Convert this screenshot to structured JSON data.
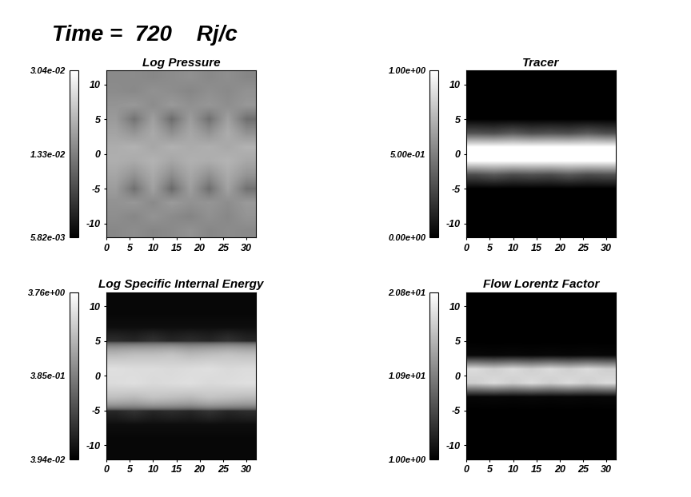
{
  "title": "Time =  720    Rj/c",
  "chart_data": [
    {
      "type": "heatmap",
      "title": "Log Pressure",
      "log": true,
      "xlim": [
        0,
        32
      ],
      "ylim": [
        -12,
        12
      ],
      "xticks": [
        0,
        5,
        10,
        15,
        20,
        25,
        30
      ],
      "yticks": [
        -10,
        -5,
        0,
        5,
        10
      ],
      "colorbar_lim": [
        0.00582,
        0.0304
      ],
      "colorbar_ticks": [
        {
          "value": 0.00582,
          "label": "5.82e-03"
        },
        {
          "value": 0.0133,
          "label": "1.33e-02"
        },
        {
          "value": 0.0304,
          "label": "3.04e-02"
        }
      ],
      "cells": [
        [
          0.014,
          0.0145,
          0.0138,
          0.0142,
          0.015,
          0.0139,
          0.0144,
          0.0141
        ],
        [
          0.0146,
          0.0139,
          0.0151,
          0.0143,
          0.0137,
          0.0148,
          0.014,
          0.0152
        ],
        [
          0.015,
          0.0155,
          0.0142,
          0.0158,
          0.0149,
          0.0153,
          0.0145,
          0.0157
        ],
        [
          0.016,
          0.012,
          0.0165,
          0.0115,
          0.0162,
          0.0118,
          0.0166,
          0.0121
        ],
        [
          0.017,
          0.015,
          0.0175,
          0.0145,
          0.0172,
          0.0148,
          0.0176,
          0.0152
        ],
        [
          0.018,
          0.0175,
          0.0185,
          0.017,
          0.0182,
          0.0178,
          0.0186,
          0.0172
        ],
        [
          0.0178,
          0.0184,
          0.0171,
          0.0183,
          0.0176,
          0.0181,
          0.0173,
          0.0185
        ],
        [
          0.0168,
          0.0152,
          0.0174,
          0.0147,
          0.0171,
          0.015,
          0.0177,
          0.0149
        ],
        [
          0.0158,
          0.0122,
          0.0163,
          0.0117,
          0.016,
          0.012,
          0.0164,
          0.0119
        ],
        [
          0.0152,
          0.0156,
          0.0144,
          0.0157,
          0.0148,
          0.0154,
          0.0146,
          0.0155
        ],
        [
          0.0144,
          0.0141,
          0.0149,
          0.0145,
          0.0139,
          0.0147,
          0.0142,
          0.015
        ],
        [
          0.0142,
          0.0143,
          0.014,
          0.0144,
          0.0148,
          0.0141,
          0.0146,
          0.0139
        ]
      ]
    },
    {
      "type": "heatmap",
      "title": "Tracer",
      "log": false,
      "xlim": [
        0,
        32
      ],
      "ylim": [
        -12,
        12
      ],
      "xticks": [
        0,
        5,
        10,
        15,
        20,
        25,
        30
      ],
      "yticks": [
        -10,
        -5,
        0,
        5,
        10
      ],
      "colorbar_lim": [
        0,
        1
      ],
      "colorbar_ticks": [
        {
          "value": 0,
          "label": "0.00e+00"
        },
        {
          "value": 0.5,
          "label": "5.00e-01"
        },
        {
          "value": 1,
          "label": "1.00e+00"
        }
      ],
      "cells": [
        [
          0,
          0,
          0,
          0,
          0,
          0,
          0,
          0
        ],
        [
          0,
          0,
          0,
          0,
          0,
          0,
          0,
          0
        ],
        [
          0,
          0,
          0,
          0,
          0,
          0,
          0,
          0
        ],
        [
          0,
          0,
          0,
          0,
          0,
          0,
          0,
          0
        ],
        [
          0.3,
          0.35,
          0.3,
          0.32,
          0.3,
          0.35,
          0.3,
          0.32
        ],
        [
          1,
          1,
          1,
          1,
          1,
          1,
          1,
          1
        ],
        [
          1,
          1,
          1,
          1,
          1,
          1,
          1,
          1
        ],
        [
          0.32,
          0.3,
          0.35,
          0.3,
          0.32,
          0.3,
          0.35,
          0.3
        ],
        [
          0,
          0,
          0,
          0,
          0,
          0,
          0,
          0
        ],
        [
          0,
          0,
          0,
          0,
          0,
          0,
          0,
          0
        ],
        [
          0,
          0,
          0,
          0,
          0,
          0,
          0,
          0
        ],
        [
          0,
          0,
          0,
          0,
          0,
          0,
          0,
          0
        ]
      ]
    },
    {
      "type": "heatmap",
      "title": "Log Specific Internal Energy",
      "log": true,
      "xlim": [
        0,
        32
      ],
      "ylim": [
        -12,
        12
      ],
      "xticks": [
        0,
        5,
        10,
        15,
        20,
        25,
        30
      ],
      "yticks": [
        -10,
        -5,
        0,
        5,
        10
      ],
      "colorbar_lim": [
        0.0394,
        3.76
      ],
      "colorbar_ticks": [
        {
          "value": 0.0394,
          "label": "3.94e-02"
        },
        {
          "value": 0.385,
          "label": "3.85e-01"
        },
        {
          "value": 3.76,
          "label": "3.76e+00"
        }
      ],
      "cells": [
        [
          0.045,
          0.045,
          0.045,
          0.045,
          0.045,
          0.045,
          0.045,
          0.045
        ],
        [
          0.045,
          0.045,
          0.045,
          0.045,
          0.045,
          0.045,
          0.045,
          0.045
        ],
        [
          0.05,
          0.05,
          0.05,
          0.05,
          0.05,
          0.05,
          0.05,
          0.05
        ],
        [
          0.08,
          0.1,
          0.08,
          0.09,
          0.08,
          0.1,
          0.08,
          0.09
        ],
        [
          1.2,
          1.1,
          1.3,
          1.2,
          1.1,
          1.3,
          1.2,
          1.1
        ],
        [
          2.0,
          2.1,
          1.9,
          2.0,
          2.1,
          1.9,
          2.0,
          2.1
        ],
        [
          2.1,
          2.0,
          2.0,
          1.9,
          2.0,
          2.1,
          1.9,
          2.0
        ],
        [
          1.1,
          1.2,
          1.2,
          1.3,
          1.1,
          1.2,
          1.3,
          1.2
        ],
        [
          0.09,
          0.08,
          0.1,
          0.08,
          0.09,
          0.08,
          0.1,
          0.08
        ],
        [
          0.05,
          0.05,
          0.05,
          0.05,
          0.05,
          0.05,
          0.05,
          0.05
        ],
        [
          0.045,
          0.045,
          0.045,
          0.045,
          0.045,
          0.045,
          0.045,
          0.045
        ],
        [
          0.045,
          0.045,
          0.045,
          0.045,
          0.045,
          0.045,
          0.045,
          0.045
        ]
      ]
    },
    {
      "type": "heatmap",
      "title": "Flow Lorentz Factor",
      "log": false,
      "xlim": [
        0,
        32
      ],
      "ylim": [
        -12,
        12
      ],
      "xticks": [
        0,
        5,
        10,
        15,
        20,
        25,
        30
      ],
      "yticks": [
        -10,
        -5,
        0,
        5,
        10
      ],
      "colorbar_lim": [
        1.0,
        20.8
      ],
      "colorbar_ticks": [
        {
          "value": 1.0,
          "label": "1.00e+00"
        },
        {
          "value": 10.9,
          "label": "1.09e+01"
        },
        {
          "value": 20.8,
          "label": "2.08e+01"
        }
      ],
      "cells": [
        [
          1,
          1,
          1,
          1,
          1,
          1,
          1,
          1
        ],
        [
          1,
          1,
          1,
          1,
          1,
          1,
          1,
          1
        ],
        [
          1,
          1,
          1,
          1,
          1,
          1,
          1,
          1
        ],
        [
          1,
          1,
          1,
          1,
          1,
          1,
          1,
          1
        ],
        [
          1.5,
          1.6,
          1.5,
          1.6,
          1.5,
          1.6,
          1.5,
          1.6
        ],
        [
          17,
          18,
          17,
          18,
          17,
          18,
          17,
          18
        ],
        [
          18,
          17,
          18,
          17,
          18,
          17,
          18,
          17
        ],
        [
          1.6,
          1.5,
          1.6,
          1.5,
          1.6,
          1.5,
          1.6,
          1.5
        ],
        [
          1,
          1,
          1,
          1,
          1,
          1,
          1,
          1
        ],
        [
          1,
          1,
          1,
          1,
          1,
          1,
          1,
          1
        ],
        [
          1,
          1,
          1,
          1,
          1,
          1,
          1,
          1
        ],
        [
          1,
          1,
          1,
          1,
          1,
          1,
          1,
          1
        ]
      ]
    }
  ]
}
